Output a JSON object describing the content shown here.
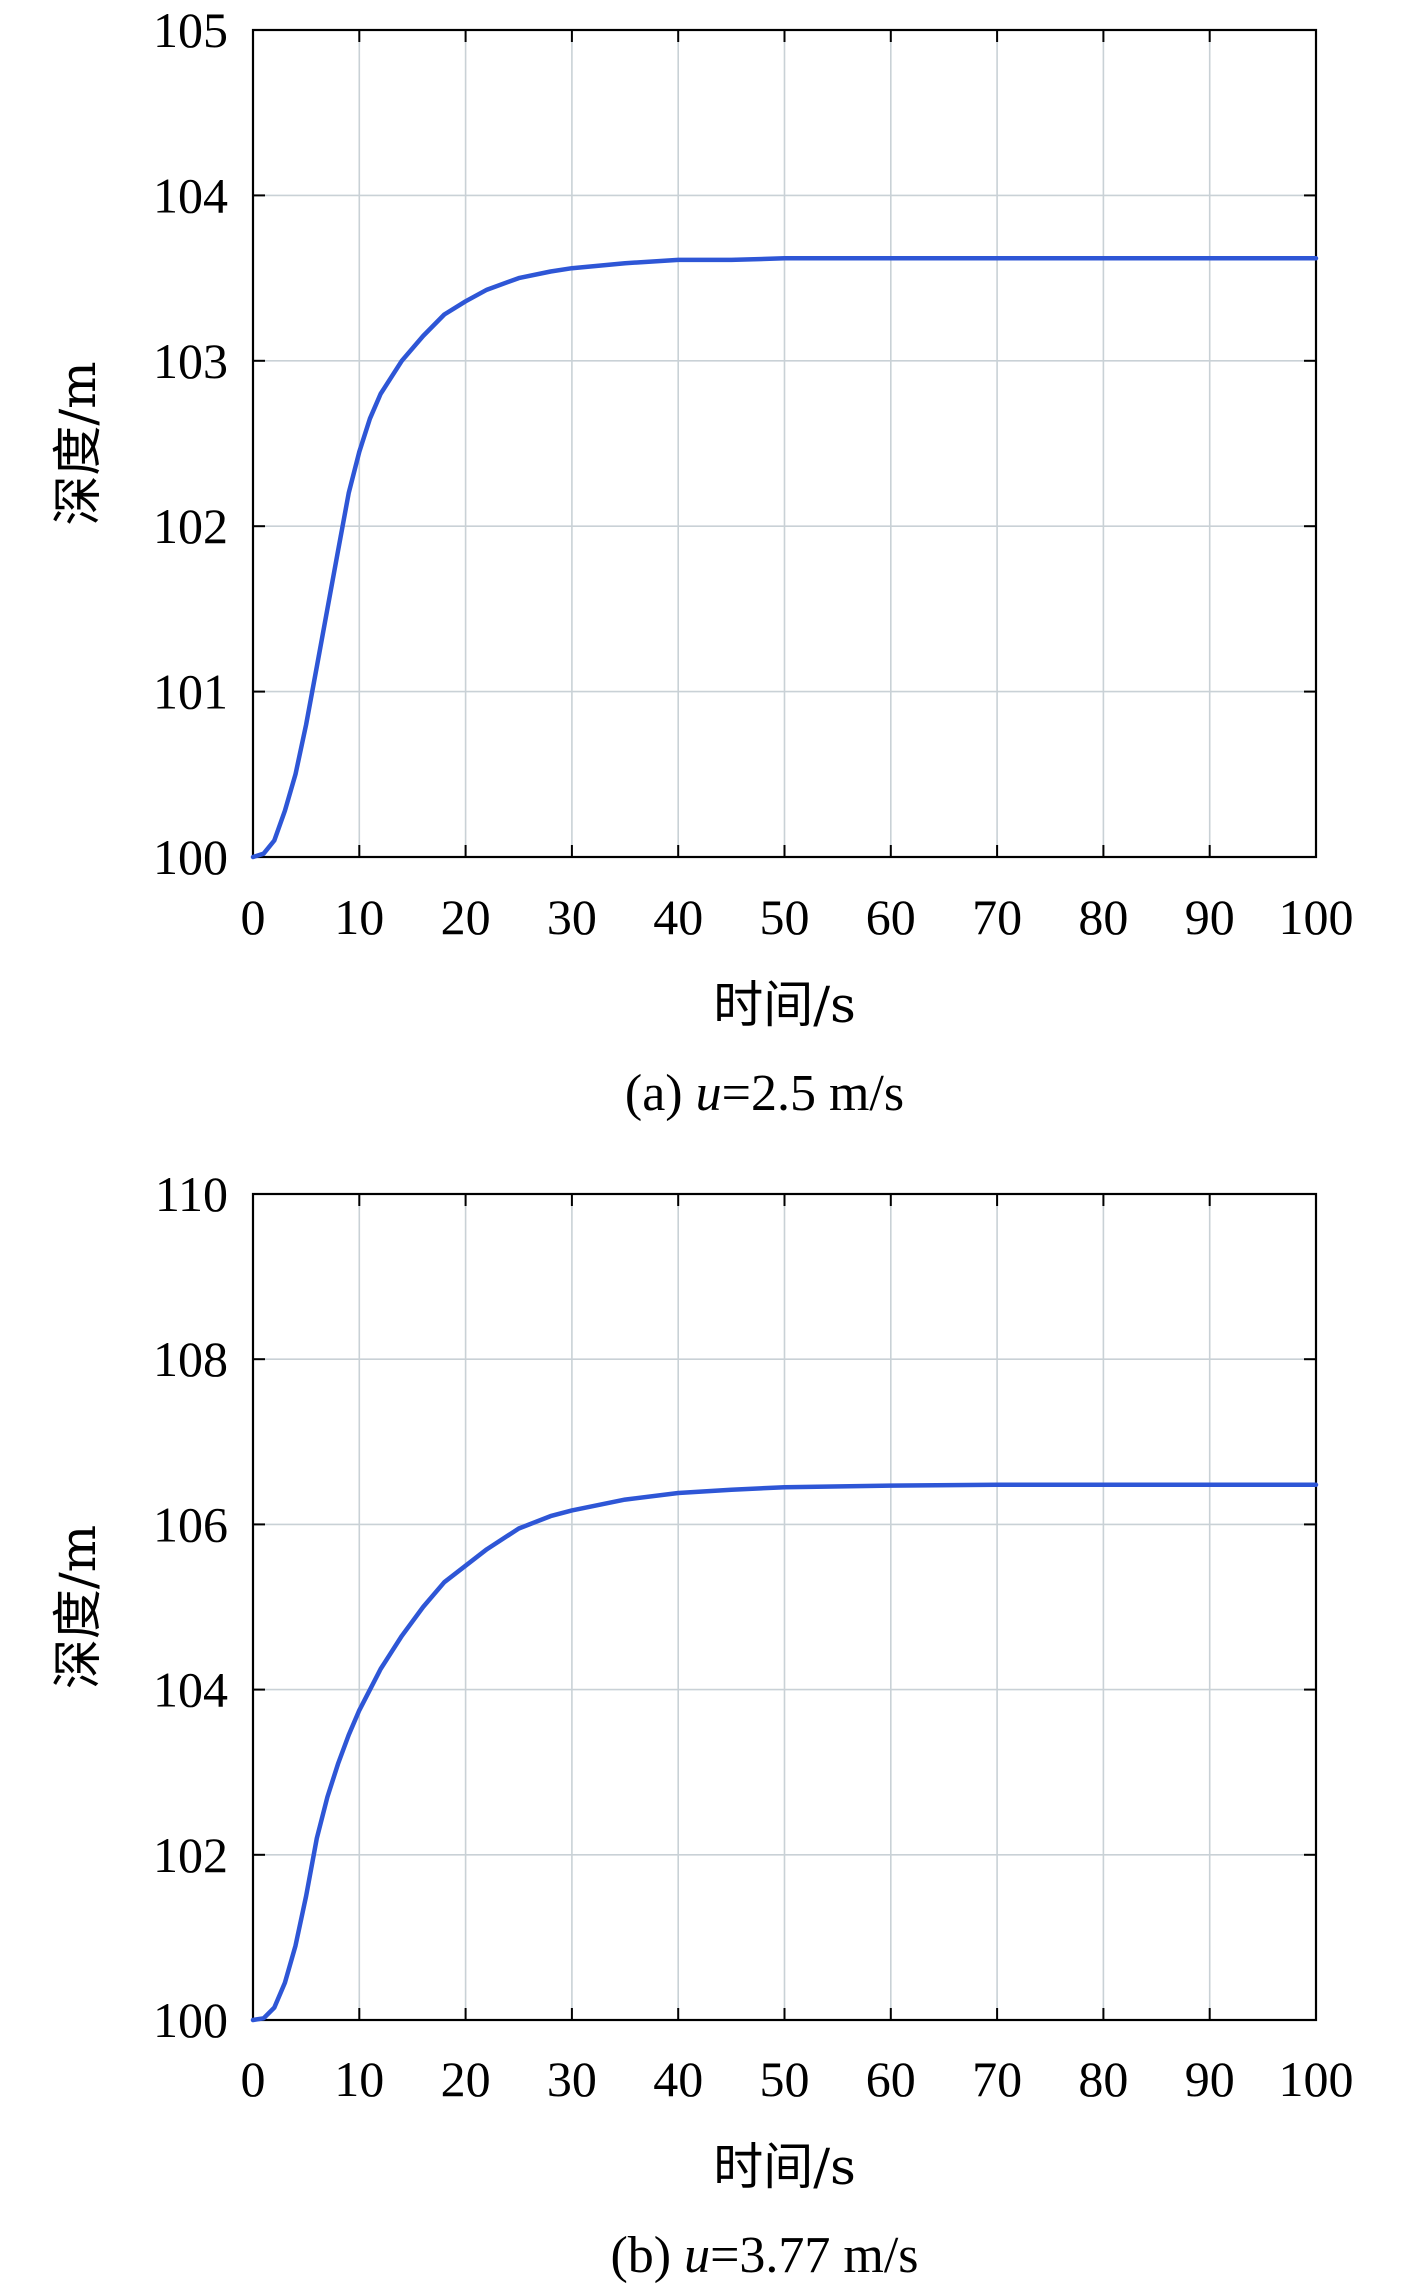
{
  "chart_data": [
    {
      "type": "line",
      "caption_prefix": "(a) ",
      "caption_var": "u",
      "caption_suffix": "=2.5 m/s",
      "xlabel": "时间/s",
      "ylabel": "深度/m",
      "xlim": [
        0,
        100
      ],
      "ylim": [
        100,
        105
      ],
      "xticks": [
        0,
        10,
        20,
        30,
        40,
        50,
        60,
        70,
        80,
        90,
        100
      ],
      "yticks": [
        100,
        101,
        102,
        103,
        104,
        105
      ],
      "grid": true,
      "colors": {
        "line": "#2e56d6"
      },
      "series": [
        {
          "x": [
            0,
            1,
            2,
            3,
            4,
            5,
            6,
            7,
            8,
            9,
            10,
            11,
            12,
            14,
            16,
            18,
            20,
            22,
            25,
            28,
            30,
            35,
            40,
            45,
            50,
            60,
            70,
            80,
            90,
            100
          ],
          "y": [
            100.0,
            100.02,
            100.1,
            100.28,
            100.5,
            100.8,
            101.15,
            101.5,
            101.85,
            102.2,
            102.45,
            102.65,
            102.8,
            103.0,
            103.15,
            103.28,
            103.36,
            103.43,
            103.5,
            103.54,
            103.56,
            103.59,
            103.61,
            103.61,
            103.62,
            103.62,
            103.62,
            103.62,
            103.62,
            103.62
          ]
        }
      ]
    },
    {
      "type": "line",
      "caption_prefix": "(b) ",
      "caption_var": "u",
      "caption_suffix": "=3.77 m/s",
      "xlabel": "时间/s",
      "ylabel": "深度/m",
      "xlim": [
        0,
        100
      ],
      "ylim": [
        100,
        110
      ],
      "xticks": [
        0,
        10,
        20,
        30,
        40,
        50,
        60,
        70,
        80,
        90,
        100
      ],
      "yticks": [
        100,
        102,
        104,
        106,
        108,
        110
      ],
      "grid": true,
      "colors": {
        "line": "#2e56d6"
      },
      "series": [
        {
          "x": [
            0,
            1,
            2,
            3,
            4,
            5,
            6,
            7,
            8,
            9,
            10,
            12,
            14,
            16,
            18,
            20,
            22,
            25,
            28,
            30,
            35,
            40,
            45,
            50,
            60,
            70,
            80,
            90,
            100
          ],
          "y": [
            100.0,
            100.02,
            100.15,
            100.45,
            100.9,
            101.5,
            102.2,
            102.7,
            103.1,
            103.45,
            103.75,
            104.25,
            104.65,
            105.0,
            105.3,
            105.5,
            105.7,
            105.95,
            106.1,
            106.17,
            106.3,
            106.38,
            106.42,
            106.45,
            106.47,
            106.48,
            106.48,
            106.48,
            106.48
          ]
        }
      ]
    }
  ]
}
